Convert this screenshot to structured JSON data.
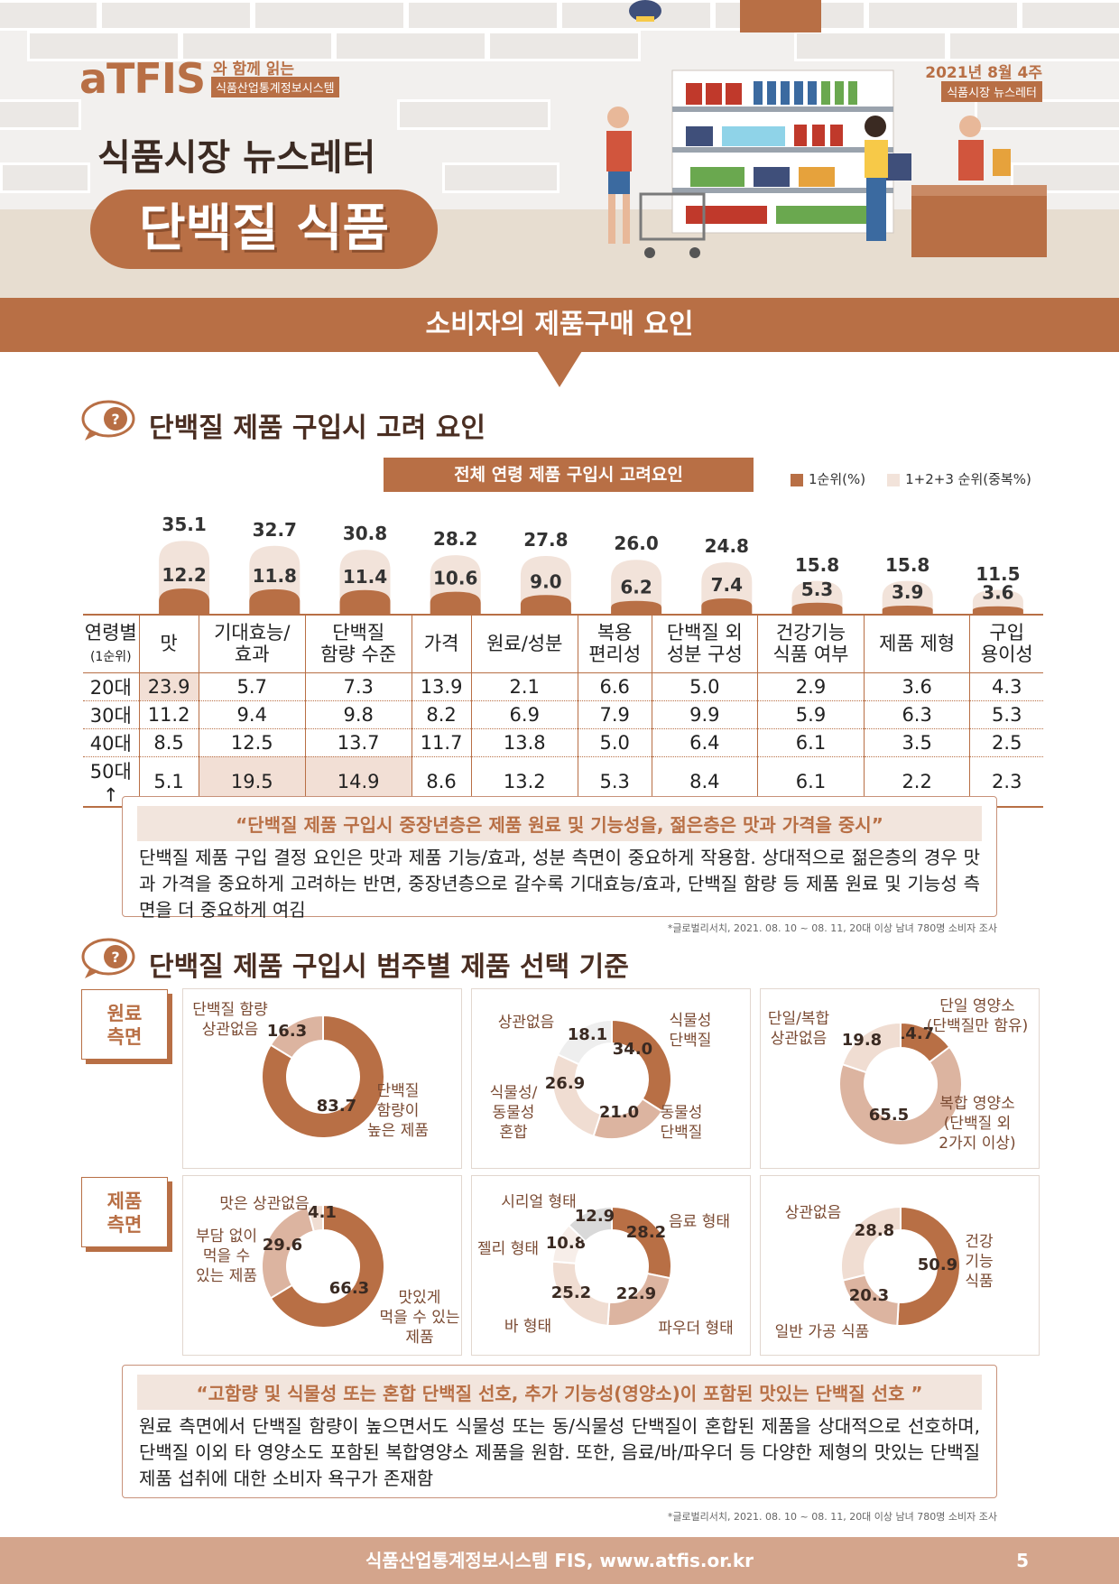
{
  "header": {
    "logo": "aTFIS",
    "logo_sub1": "와 함께 읽는",
    "logo_sub2": "식품산업통계정보시스템",
    "newsletter_title": "식품시장 뉴스레터",
    "topic": "단백질 식품",
    "date": "2021년 8월 4주",
    "date_tag": "식품시장 뉴스레터"
  },
  "banner": "소비자의 제품구매 요인",
  "section1": {
    "title": "단백질 제품 구입시 고려 요인",
    "chart_title": "전체 연령 제품 구입시 고려요인",
    "legend": [
      "1순위(%)",
      "1+2+3 순위(중복%)"
    ]
  },
  "chart_data": {
    "type": "bar",
    "title": "전체 연령 제품 구입시 고려요인",
    "categories": [
      "맛",
      "기대효능/효과",
      "단백질 함량 수준",
      "가격",
      "원료/성분",
      "복용 편리성",
      "단백질 외 성분 구성",
      "건강기능 식품 여부",
      "제품 제형",
      "구입 용이성"
    ],
    "series": [
      {
        "name": "1순위(%)",
        "values": [
          12.2,
          11.8,
          11.4,
          10.6,
          9.0,
          6.2,
          7.4,
          5.3,
          3.9,
          3.6
        ]
      },
      {
        "name": "1+2+3 순위(중복%)",
        "values": [
          35.1,
          32.7,
          30.8,
          28.2,
          27.8,
          26.0,
          24.8,
          15.8,
          15.8,
          11.5
        ]
      }
    ],
    "colors": [
      "#b86f45",
      "#f2e3da"
    ]
  },
  "table": {
    "header_label": [
      "연령별",
      "(1순위)"
    ],
    "columns": [
      [
        "맛"
      ],
      [
        "기대효능/",
        "효과"
      ],
      [
        "단백질",
        "함량 수준"
      ],
      [
        "가격"
      ],
      [
        "원료/성분"
      ],
      [
        "복용",
        "편리성"
      ],
      [
        "단백질 외",
        "성분 구성"
      ],
      [
        "건강기능",
        "식품 여부"
      ],
      [
        "제품 제형"
      ],
      [
        "구입",
        "용이성"
      ]
    ],
    "rows": [
      {
        "label": "20대",
        "values": [
          "23.9",
          "5.7",
          "7.3",
          "13.9",
          "2.1",
          "6.6",
          "5.0",
          "2.9",
          "3.6",
          "4.3"
        ]
      },
      {
        "label": "30대",
        "values": [
          "11.2",
          "9.4",
          "9.8",
          "8.2",
          "6.9",
          "7.9",
          "9.9",
          "5.9",
          "6.3",
          "5.3"
        ]
      },
      {
        "label": "40대",
        "values": [
          "8.5",
          "12.5",
          "13.7",
          "11.7",
          "13.8",
          "5.0",
          "6.4",
          "6.1",
          "3.5",
          "2.5"
        ]
      },
      {
        "label": "50대↑",
        "values": [
          "5.1",
          "19.5",
          "14.9",
          "8.6",
          "13.2",
          "5.3",
          "8.4",
          "6.1",
          "2.2",
          "2.3"
        ]
      }
    ]
  },
  "box1": {
    "title": "“단백질 제품 구입시 중장년층은 제품 원료 및 기능성을, 젊은층은 맛과 가격을 중시”",
    "body": "단백질 제품 구입 결정 요인은 맛과 제품 기능/효과, 성분 측면이 중요하게 작용함. 상대적으로 젊은층의 경우 맛과 가격을 중요하게 고려하는 반면, 중장년층으로 갈수록 기대효능/효과, 단백질 함량 등 제품 원료 및 기능성 측면을 더 중요하게 여김"
  },
  "note": "*글로벌리서치, 2021. 08. 10 ~ 08. 11, 20대 이상 남녀 780명 소비자 조사",
  "section2": {
    "title": "단백질 제품 구입시 범주별 제품 선택 기준",
    "tag_raw": [
      "원료",
      "측면"
    ],
    "tag_product": [
      "제품",
      "측면"
    ]
  },
  "donuts": [
    {
      "slices": [
        {
          "value": "83.7",
          "label": [
            "단백질",
            "함량이",
            "높은 제품"
          ],
          "color": "#b86f45"
        },
        {
          "value": "16.3",
          "label": [
            "단백질 함량",
            "상관없음"
          ],
          "color": "#dcb4a0"
        }
      ]
    },
    {
      "slices": [
        {
          "value": "34.0",
          "label": [
            "식물성",
            "단백질"
          ],
          "color": "#b86f45"
        },
        {
          "value": "21.0",
          "label": [
            "동물성",
            "단백질"
          ],
          "color": "#dcb4a0"
        },
        {
          "value": "26.9",
          "label": [
            "식물성/",
            "동물성",
            "혼합"
          ],
          "color": "#f0ddd2"
        },
        {
          "value": "18.1",
          "label": [
            "상관없음"
          ],
          "color": "#eeeeee"
        }
      ]
    },
    {
      "slices": [
        {
          "value": "14.7",
          "label": [
            "단일 영양소",
            "(단백질만 함유)"
          ],
          "color": "#b86f45"
        },
        {
          "value": "65.5",
          "label": [
            "복합 영양소",
            "(단백질 외",
            "2가지 이상)"
          ],
          "color": "#dcb4a0"
        },
        {
          "value": "19.8",
          "label": [
            "단일/복합",
            "상관없음"
          ],
          "color": "#f0ddd2"
        }
      ]
    },
    {
      "slices": [
        {
          "value": "66.3",
          "label": [
            "맛있게",
            "먹을 수 있는",
            "제품"
          ],
          "color": "#b86f45"
        },
        {
          "value": "29.6",
          "label": [
            "부담 없이",
            "먹을 수",
            "있는 제품"
          ],
          "color": "#dcb4a0"
        },
        {
          "value": "4.1",
          "label": [
            "맛은 상관없음"
          ],
          "color": "#f0ddd2"
        }
      ]
    },
    {
      "slices": [
        {
          "value": "28.2",
          "label": [
            "음료 형태"
          ],
          "color": "#b86f45"
        },
        {
          "value": "22.9",
          "label": [
            "파우더 형태"
          ],
          "color": "#dcb4a0"
        },
        {
          "value": "25.2",
          "label": [
            "바 형태"
          ],
          "color": "#f0ddd2"
        },
        {
          "value": "10.8",
          "label": [
            "젤리 형태"
          ],
          "color": "#f7eee9"
        },
        {
          "value": "12.9",
          "label": [
            "시리얼 형태"
          ],
          "color": "#d9d9d9"
        }
      ]
    },
    {
      "slices": [
        {
          "value": "50.9",
          "label": [
            "건강",
            "기능",
            "식품"
          ],
          "color": "#b86f45"
        },
        {
          "value": "20.3",
          "label": [
            "일반 가공 식품"
          ],
          "color": "#dcb4a0"
        },
        {
          "value": "28.8",
          "label": [
            "상관없음"
          ],
          "color": "#f0ddd2"
        }
      ]
    }
  ],
  "box2": {
    "title": "“고함량 및 식물성 또는 혼합 단백질 선호, 추가 기능성(영양소)이 포함된 맛있는 단백질 선호 ”",
    "body": "원료 측면에서 단백질 함량이 높으면서도 식물성 또는 동/식물성 단백질이 혼합된 제품을 상대적으로 선호하며, 단백질 이외 타 영양소도 포함된 복합영양소 제품을 원함. 또한, 음료/바/파우더 등 다양한 제형의 맛있는 단백질 제품 섭취에 대한 소비자 욕구가 존재함"
  },
  "note2": "*글로벌리서치, 2021. 08. 10 ~ 08. 11, 20대 이상 남녀 780명 소비자 조사",
  "footer": {
    "text": "식품산업통계정보시스템 FIS, www.atfis.or.kr",
    "page": "5"
  }
}
